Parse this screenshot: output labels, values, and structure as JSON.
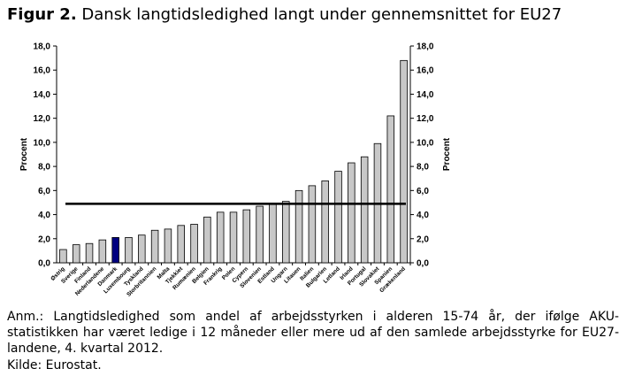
{
  "figure": {
    "title_prefix": "Figur 2.",
    "title_text": " Dansk langtidsledighed langt under gennemsnittet for EU27",
    "note": "Anm.: Langtidsledighed som andel af arbejdsstyrken i alderen 15-74 år, der ifølge AKU-statistikken har været ledige i 12 måneder eller mere ud af den samlede arbejdsstyrke for EU27-landene, 4. kvartal 2012.",
    "source": "Kilde: Eurostat."
  },
  "chart_data": {
    "type": "bar",
    "categories": [
      "Østrig",
      "Sverige",
      "Finland",
      "Nederlandene",
      "Danmark",
      "Luxembourg",
      "Tyskland",
      "Storbritannien",
      "Malta",
      "Tjekkiet",
      "Rumænien",
      "Belgien",
      "Frankrig",
      "Polen",
      "Cypern",
      "Slovenien",
      "Estland",
      "Ungarn",
      "Litauen",
      "Italien",
      "Bulgarien",
      "Letland",
      "Irland",
      "Portugal",
      "Slovakiet",
      "Spanien",
      "Grækenland"
    ],
    "values": [
      1.1,
      1.5,
      1.6,
      1.9,
      2.1,
      2.1,
      2.3,
      2.7,
      2.8,
      3.1,
      3.2,
      3.8,
      4.2,
      4.2,
      4.4,
      4.7,
      4.9,
      5.1,
      6.0,
      6.4,
      6.8,
      7.6,
      8.3,
      8.8,
      9.9,
      12.2,
      16.8
    ],
    "highlight_category": "Danmark",
    "reference_line": 4.9,
    "ylabel_left": "Procent",
    "ylabel_right": "Procent",
    "ylim": [
      0,
      18
    ],
    "yticks": [
      "0,0",
      "2,0",
      "4,0",
      "6,0",
      "8,0",
      "10,0",
      "12,0",
      "14,0",
      "16,0",
      "18,0"
    ],
    "colors": {
      "bar": "#c8c8c8",
      "highlight": "#000080",
      "line": "#000000"
    },
    "grid": false
  }
}
